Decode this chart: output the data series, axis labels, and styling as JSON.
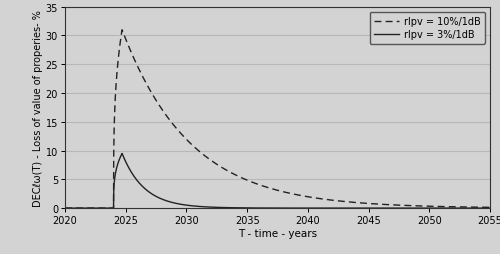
{
  "xlim": [
    2020,
    2055
  ],
  "ylim": [
    0,
    35
  ],
  "xticks": [
    2020,
    2025,
    2030,
    2035,
    2040,
    2045,
    2050,
    2055
  ],
  "yticks": [
    0,
    5,
    10,
    15,
    20,
    25,
    30,
    35
  ],
  "xlabel": "T - time - years",
  "ylabel": "DECℓω(T) - Loss of value of properies- %",
  "background_color": "#d3d3d3",
  "line1_label": "rlpv = 10%/1dB",
  "line2_label": "rlpv = 3%/1dB",
  "peak_year": 2024.7,
  "peak1_value": 31.0,
  "peak2_value": 9.5,
  "rise_start": 2024.0,
  "decay_rate1": 0.18,
  "decay_rate2": 0.55,
  "grid_color": "#b8b8b8",
  "line_color": "#222222"
}
